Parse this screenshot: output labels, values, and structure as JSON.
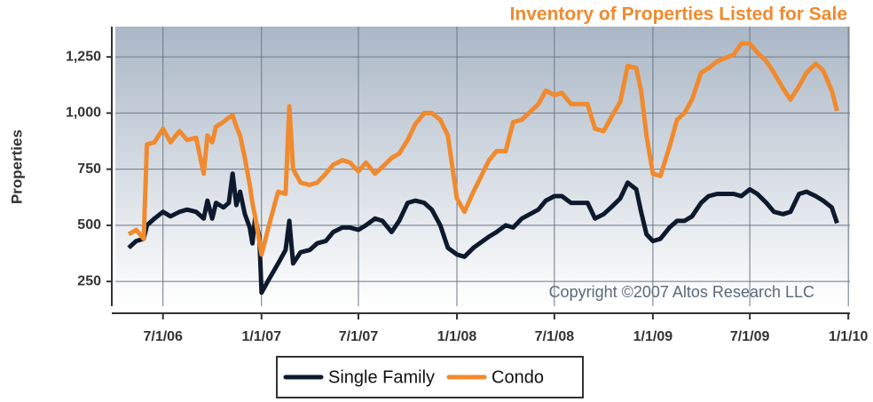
{
  "chart_data": {
    "type": "line",
    "title": "Inventory of Properties Listed for Sale",
    "y_label": "Properties",
    "annotation": "Copyright ©2007 Altos Research LLC",
    "legend": "bottom",
    "grid": true,
    "xlim": [
      "2006-04-03",
      "2010-01-04"
    ],
    "xticks": [
      {
        "value": "2006-07-01",
        "label": "7/1/06"
      },
      {
        "value": "2007-01-01",
        "label": "1/1/07"
      },
      {
        "value": "2007-07-01",
        "label": "7/1/07"
      },
      {
        "value": "2008-01-01",
        "label": "1/1/08"
      },
      {
        "value": "2008-07-01",
        "label": "7/1/08"
      },
      {
        "value": "2009-01-01",
        "label": "1/1/09"
      },
      {
        "value": "2009-07-01",
        "label": "7/1/09"
      },
      {
        "value": "2010-01-01",
        "label": "1/1/10"
      }
    ],
    "ylim": [
      140,
      1385
    ],
    "yticks": [
      250,
      500,
      750,
      {
        "value": 1000,
        "label": "1,000"
      },
      {
        "value": 1250,
        "label": "1,250"
      }
    ],
    "x": [
      "2006-04-28",
      "2006-05-12",
      "2006-05-26",
      "2006-06-01",
      "2006-06-15",
      "2006-07-01",
      "2006-07-15",
      "2006-08-01",
      "2006-08-15",
      "2006-09-01",
      "2006-09-15",
      "2006-09-22",
      "2006-10-01",
      "2006-10-08",
      "2006-10-22",
      "2006-11-01",
      "2006-11-08",
      "2006-11-15",
      "2006-11-22",
      "2006-12-01",
      "2006-12-10",
      "2006-12-15",
      "2006-12-20",
      "2006-12-28",
      "2007-01-01",
      "2007-01-15",
      "2007-02-01",
      "2007-02-15",
      "2007-02-22",
      "2007-03-01",
      "2007-03-15",
      "2007-04-01",
      "2007-04-15",
      "2007-05-01",
      "2007-05-15",
      "2007-06-01",
      "2007-06-15",
      "2007-07-01",
      "2007-07-15",
      "2007-08-01",
      "2007-08-15",
      "2007-09-01",
      "2007-09-15",
      "2007-10-01",
      "2007-10-15",
      "2007-11-01",
      "2007-11-15",
      "2007-12-01",
      "2007-12-15",
      "2008-01-01",
      "2008-01-15",
      "2008-02-01",
      "2008-03-01",
      "2008-03-15",
      "2008-04-01",
      "2008-04-15",
      "2008-05-01",
      "2008-06-01",
      "2008-06-15",
      "2008-07-01",
      "2008-07-15",
      "2008-08-01",
      "2008-09-01",
      "2008-09-15",
      "2008-10-01",
      "2008-10-15",
      "2008-11-01",
      "2008-11-15",
      "2008-12-01",
      "2008-12-10",
      "2008-12-20",
      "2009-01-01",
      "2009-01-15",
      "2009-02-01",
      "2009-02-15",
      "2009-03-01",
      "2009-03-15",
      "2009-04-01",
      "2009-04-15",
      "2009-05-01",
      "2009-06-01",
      "2009-06-15",
      "2009-07-01",
      "2009-07-15",
      "2009-08-01",
      "2009-08-15",
      "2009-09-01",
      "2009-09-15",
      "2009-10-01",
      "2009-10-15",
      "2009-11-01",
      "2009-11-15",
      "2009-12-01",
      "2009-12-11"
    ],
    "series": [
      {
        "name": "Single Family",
        "color": "#0d1a2e",
        "values": [
          400,
          430,
          440,
          500,
          530,
          560,
          540,
          560,
          570,
          560,
          530,
          610,
          530,
          600,
          580,
          600,
          730,
          590,
          650,
          550,
          490,
          420,
          530,
          450,
          200,
          260,
          330,
          390,
          520,
          330,
          380,
          390,
          420,
          430,
          470,
          490,
          490,
          480,
          500,
          530,
          520,
          470,
          520,
          600,
          610,
          600,
          570,
          500,
          400,
          370,
          360,
          400,
          450,
          470,
          500,
          490,
          530,
          570,
          610,
          630,
          630,
          600,
          600,
          530,
          550,
          580,
          620,
          690,
          660,
          560,
          460,
          430,
          440,
          490,
          520,
          520,
          540,
          600,
          630,
          640,
          640,
          630,
          660,
          640,
          600,
          560,
          550,
          560,
          640,
          650,
          630,
          610,
          580,
          510
        ]
      },
      {
        "name": "Condo",
        "color": "#f08a2e",
        "values": [
          460,
          480,
          440,
          860,
          870,
          930,
          870,
          920,
          880,
          890,
          730,
          900,
          870,
          940,
          960,
          980,
          990,
          940,
          900,
          800,
          680,
          600,
          540,
          430,
          370,
          500,
          650,
          640,
          1030,
          750,
          690,
          680,
          690,
          730,
          770,
          790,
          780,
          740,
          780,
          730,
          760,
          800,
          820,
          880,
          950,
          1000,
          1000,
          970,
          900,
          620,
          560,
          650,
          790,
          830,
          830,
          960,
          970,
          1040,
          1100,
          1080,
          1090,
          1040,
          1040,
          930,
          920,
          980,
          1050,
          1210,
          1200,
          1100,
          900,
          730,
          720,
          850,
          970,
          1000,
          1060,
          1180,
          1200,
          1230,
          1260,
          1310,
          1310,
          1270,
          1230,
          1180,
          1110,
          1060,
          1120,
          1180,
          1220,
          1190,
          1100,
          1010
        ]
      }
    ]
  }
}
